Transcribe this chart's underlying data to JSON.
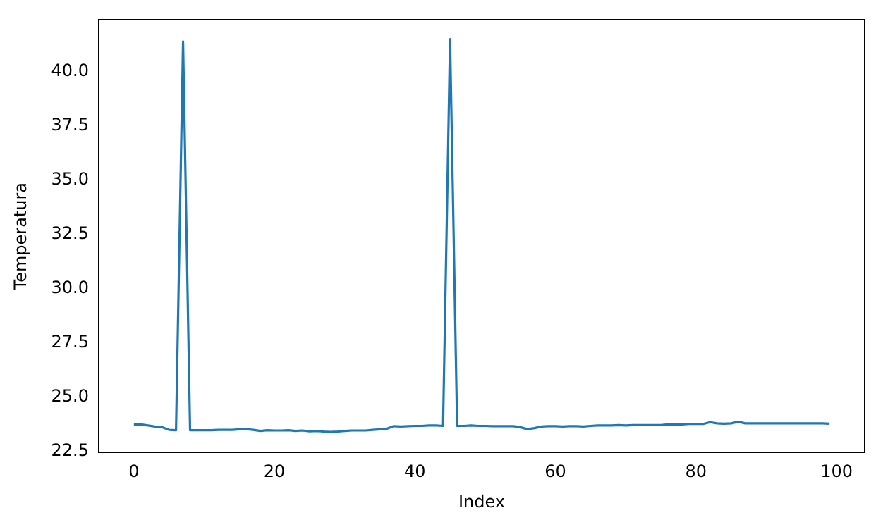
{
  "chart_data": {
    "type": "line",
    "xlabel": "Index",
    "ylabel": "Temperatura",
    "x": [
      0,
      1,
      2,
      3,
      4,
      5,
      6,
      7,
      8,
      9,
      10,
      11,
      12,
      13,
      14,
      15,
      16,
      17,
      18,
      19,
      20,
      21,
      22,
      23,
      24,
      25,
      26,
      27,
      28,
      29,
      30,
      31,
      32,
      33,
      34,
      35,
      36,
      37,
      38,
      39,
      40,
      41,
      42,
      43,
      44,
      45,
      46,
      47,
      48,
      49,
      50,
      51,
      52,
      53,
      54,
      55,
      56,
      57,
      58,
      59,
      60,
      61,
      62,
      63,
      64,
      65,
      66,
      67,
      68,
      69,
      70,
      71,
      72,
      73,
      74,
      75,
      76,
      77,
      78,
      79,
      80,
      81,
      82,
      83,
      84,
      85,
      86,
      87,
      88,
      89,
      90,
      91,
      92,
      93,
      94,
      95,
      96,
      97,
      98,
      99
    ],
    "series": [
      {
        "color": "#1f77b4",
        "values": [
          23.75,
          23.75,
          23.7,
          23.65,
          23.62,
          23.5,
          23.48,
          41.4,
          23.48,
          23.48,
          23.48,
          23.48,
          23.5,
          23.5,
          23.5,
          23.52,
          23.53,
          23.5,
          23.45,
          23.48,
          23.47,
          23.47,
          23.48,
          23.45,
          23.47,
          23.43,
          23.45,
          23.42,
          23.4,
          23.42,
          23.45,
          23.47,
          23.47,
          23.47,
          23.5,
          23.52,
          23.55,
          23.67,
          23.65,
          23.67,
          23.68,
          23.68,
          23.7,
          23.7,
          23.68,
          41.5,
          23.68,
          23.68,
          23.7,
          23.68,
          23.68,
          23.67,
          23.67,
          23.67,
          23.67,
          23.62,
          23.53,
          23.58,
          23.65,
          23.67,
          23.67,
          23.65,
          23.67,
          23.67,
          23.65,
          23.68,
          23.7,
          23.7,
          23.7,
          23.72,
          23.7,
          23.72,
          23.72,
          23.72,
          23.72,
          23.72,
          23.75,
          23.75,
          23.75,
          23.77,
          23.77,
          23.77,
          23.85,
          23.8,
          23.78,
          23.8,
          23.87,
          23.8,
          23.8,
          23.8,
          23.8,
          23.8,
          23.8,
          23.8,
          23.8,
          23.8,
          23.8,
          23.8,
          23.8,
          23.78
        ]
      }
    ],
    "xlim": [
      -5,
      104
    ],
    "xticks": [
      0,
      20,
      40,
      60,
      80,
      100
    ],
    "ylim": [
      22.45,
      42.4
    ],
    "yticks": [
      22.5,
      {
        "value": 25,
        "label": "25.0"
      },
      27.5,
      {
        "value": 30,
        "label": "30.0"
      },
      32.5,
      {
        "value": 35,
        "label": "35.0"
      },
      37.5,
      {
        "value": 40,
        "label": "40.0"
      }
    ],
    "grid": false,
    "legend": false,
    "marker": "none",
    "line_style": "solid"
  }
}
